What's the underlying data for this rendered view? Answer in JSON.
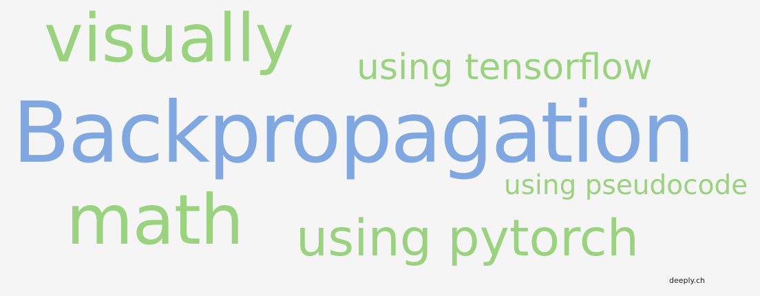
{
  "words": {
    "visually": "visually",
    "using_tensorflow": "using tensorflow",
    "backpropagation": "Backpropagation",
    "using_pseudocode": "using pseudocode",
    "math": "math",
    "using_pytorch": "using pytorch"
  },
  "credit": "deeply.ch",
  "colors": {
    "background": "#f5f5f5",
    "green": "#9ad27f",
    "blue": "#80a7e0",
    "credit": "#222222"
  }
}
